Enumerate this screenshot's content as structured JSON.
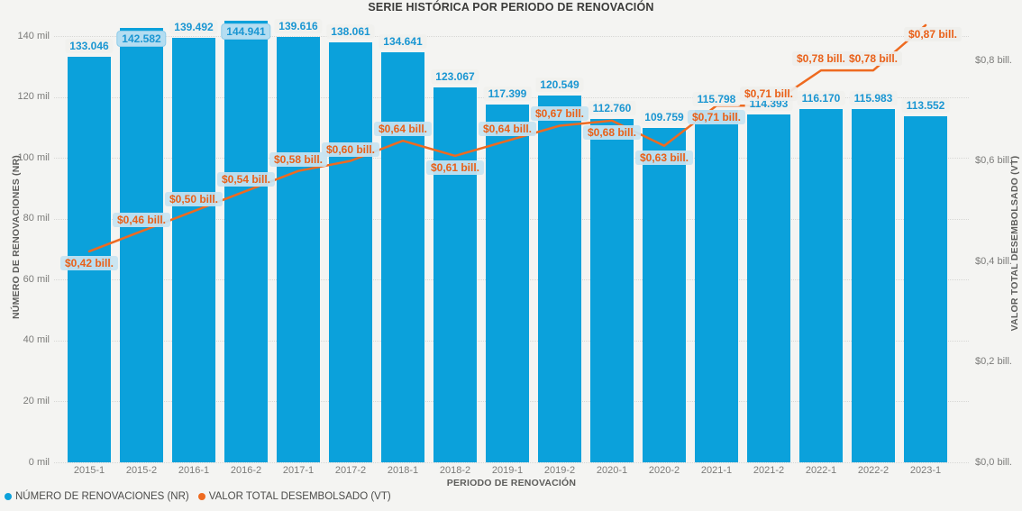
{
  "chart_data": {
    "type": "combo-bar-line",
    "title": "SERIE HISTÓRICA POR PERIODO DE RENOVACIÓN",
    "categories": [
      "2015-1",
      "2015-2",
      "2016-1",
      "2016-2",
      "2017-1",
      "2017-2",
      "2018-1",
      "2018-2",
      "2019-1",
      "2019-2",
      "2020-1",
      "2020-2",
      "2021-1",
      "2021-2",
      "2022-1",
      "2022-2",
      "2023-1"
    ],
    "series": [
      {
        "name": "NÚMERO DE RENOVACIONES (NR)",
        "type": "bar",
        "y_axis": "left",
        "color": "#0ba1db",
        "label_text_color": "#1a96d2",
        "values": [
          133046,
          142582,
          139492,
          144941,
          139616,
          138061,
          134641,
          123067,
          117399,
          120549,
          112760,
          109759,
          115798,
          114393,
          116170,
          115983,
          113552
        ],
        "labels": [
          "133.046",
          "142.582",
          "139.492",
          "144.941",
          "139.616",
          "138.061",
          "134.641",
          "123.067",
          "117.399",
          "120.549",
          "112.760",
          "109.759",
          "115.798",
          "114.393",
          "116.170",
          "115.983",
          "113.552"
        ]
      },
      {
        "name": "VALOR TOTAL DESEMBOLSADO (VT)",
        "type": "line",
        "y_axis": "right",
        "color": "#ee6a20",
        "label_text_color": "#e96018",
        "values": [
          0.42,
          0.46,
          0.5,
          0.54,
          0.58,
          0.6,
          0.64,
          0.61,
          0.64,
          0.67,
          0.68,
          0.63,
          0.71,
          0.71,
          0.78,
          0.78,
          0.87
        ],
        "labels": [
          "$0,42 bill.",
          "$0,46 bill.",
          "$0,50 bill.",
          "$0,54 bill.",
          "$0,58 bill.",
          "$0,60 bill.",
          "$0,64 bill.",
          "$0,61 bill.",
          "$0,64 bill.",
          "$0,67 bill.",
          "$0,68 bill.",
          "$0,71 bill.",
          "$0,71 bill.",
          "$0,78 bill.",
          "$0,78 bill.",
          "$0,87 bill."
        ],
        "labels_full": [
          "$0,42 bill.",
          "$0,46 bill.",
          "$0,50 bill.",
          "$0,54 bill.",
          "$0,58 bill.",
          "$0,60 bill.",
          "$0,64 bill.",
          "$0,61 bill.",
          "$0,64 bill.",
          "$0,67 bill.",
          "$0,68 bill.",
          "$0,63 bill.",
          "$0,71 bill.",
          "$0,71 bill.",
          "$0,78 bill.",
          "$0,78 bill.",
          "$0,87 bill."
        ]
      }
    ],
    "x_axis": {
      "title": "PERIODO DE RENOVACIÓN"
    },
    "left_axis": {
      "title": "NÚMERO DE RENOVACIONES (NR)",
      "tick_labels": [
        "0 mil",
        "20 mil",
        "40 mil",
        "60 mil",
        "80 mil",
        "100 mil",
        "120 mil",
        "140 mil"
      ],
      "tick_values": [
        0,
        20000,
        40000,
        60000,
        80000,
        100000,
        120000,
        140000
      ],
      "min": 0,
      "max": 140000
    },
    "right_axis": {
      "title": "VALOR TOTAL DESEMBOLSADO (VT)",
      "tick_labels": [
        "$0,0 bill.",
        "$0,2 bill.",
        "$0,4 bill.",
        "$0,6 bill.",
        "$0,8 bill."
      ],
      "tick_values": [
        0,
        0.2,
        0.4,
        0.6,
        0.8
      ],
      "min": 0,
      "max": 0.8
    },
    "legend": {
      "position": "bottom-left",
      "items": [
        "NÚMERO DE RENOVACIONES (NR)",
        "VALOR TOTAL DESEMBOLSADO (VT)"
      ]
    },
    "grid": "horizontal-dotted",
    "layout_hints": {
      "bar_label_inside_indices": [
        1,
        3
      ],
      "line_label_positions": [
        "below",
        "above",
        "above",
        "above",
        "above",
        "above",
        "above",
        "below",
        "above",
        "above",
        "below",
        "below",
        "below",
        "above",
        "above",
        "above",
        "below"
      ],
      "line_label_overrides": {
        "16": {
          "dx": 8,
          "dy": 10
        }
      }
    },
    "colors": {
      "background": "#f4f4f2",
      "gridline": "#d7d7d5",
      "tick_text": "#7b7b79",
      "title_text": "#3b3b39"
    }
  }
}
